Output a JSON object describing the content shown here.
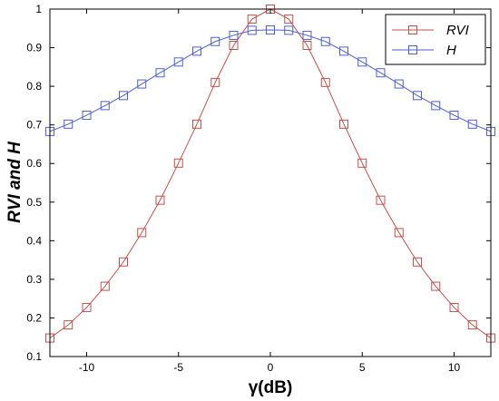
{
  "chart_data": {
    "type": "line",
    "xlabel": "γ(dB)",
    "ylabel": "RVI and H",
    "xlim": [
      -12,
      12
    ],
    "ylim": [
      0.1,
      1.0
    ],
    "xticks": [
      "-10",
      "-5",
      "0",
      "5",
      "10"
    ],
    "xtick_values": [
      -10,
      -5,
      0,
      5,
      10
    ],
    "yticks": [
      "0.1",
      "0.2",
      "0.3",
      "0.4",
      "0.5",
      "0.6",
      "0.7",
      "0.8",
      "0.9",
      "1"
    ],
    "ytick_values": [
      0.1,
      0.2,
      0.3,
      0.4,
      0.5,
      0.6,
      0.7,
      0.8,
      0.9,
      1.0
    ],
    "grid": false,
    "legend_position": "top-right",
    "x": [
      -12,
      -11,
      -10,
      -9,
      -8,
      -7,
      -6,
      -5,
      -4,
      -3,
      -2,
      -1,
      0,
      1,
      2,
      3,
      4,
      5,
      6,
      7,
      8,
      9,
      10,
      11,
      12
    ],
    "series": [
      {
        "name": "RVI",
        "color": "#c0504d",
        "marker": "square",
        "values": [
          0.148,
          0.182,
          0.227,
          0.282,
          0.345,
          0.421,
          0.505,
          0.601,
          0.702,
          0.81,
          0.906,
          0.974,
          1.0,
          0.974,
          0.906,
          0.81,
          0.702,
          0.601,
          0.505,
          0.421,
          0.345,
          0.282,
          0.227,
          0.182,
          0.148
        ]
      },
      {
        "name": "H",
        "color": "#4f5fd0",
        "marker": "square",
        "values": [
          0.683,
          0.702,
          0.725,
          0.75,
          0.776,
          0.806,
          0.835,
          0.863,
          0.891,
          0.916,
          0.932,
          0.945,
          0.946,
          0.945,
          0.932,
          0.916,
          0.891,
          0.863,
          0.835,
          0.806,
          0.776,
          0.75,
          0.725,
          0.702,
          0.683
        ]
      }
    ]
  }
}
